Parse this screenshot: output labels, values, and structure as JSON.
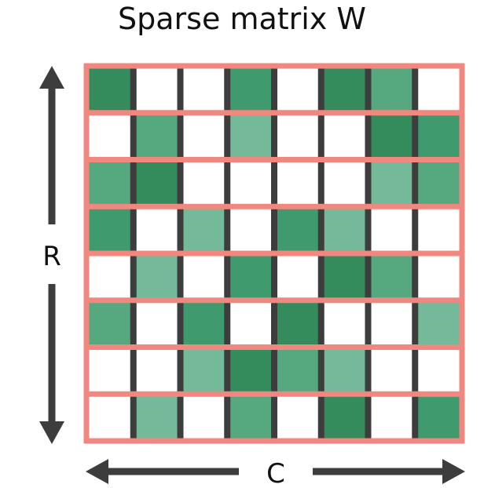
{
  "title": "Sparse matrix W",
  "row_axis_label": "R",
  "col_axis_label": "C",
  "colors": {
    "grid": "#f08880",
    "separator": "#3d3d3d",
    "arrow": "#3d3d3d",
    "empty": "#ffffff",
    "levels": [
      "#ffffff",
      "#74b999",
      "#56a97f",
      "#3f9a6e",
      "#348b5b"
    ]
  },
  "matrix": {
    "rows": 8,
    "cols": 8,
    "cells": [
      [
        4,
        0,
        0,
        3,
        0,
        4,
        2,
        0
      ],
      [
        0,
        2,
        0,
        1,
        0,
        0,
        4,
        3
      ],
      [
        2,
        4,
        0,
        0,
        0,
        0,
        1,
        2
      ],
      [
        3,
        0,
        1,
        0,
        3,
        1,
        0,
        0
      ],
      [
        0,
        1,
        0,
        3,
        0,
        4,
        2,
        0
      ],
      [
        2,
        0,
        3,
        0,
        4,
        0,
        0,
        1
      ],
      [
        0,
        0,
        1,
        4,
        2,
        1,
        0,
        0
      ],
      [
        0,
        1,
        0,
        2,
        0,
        4,
        0,
        3
      ]
    ]
  }
}
